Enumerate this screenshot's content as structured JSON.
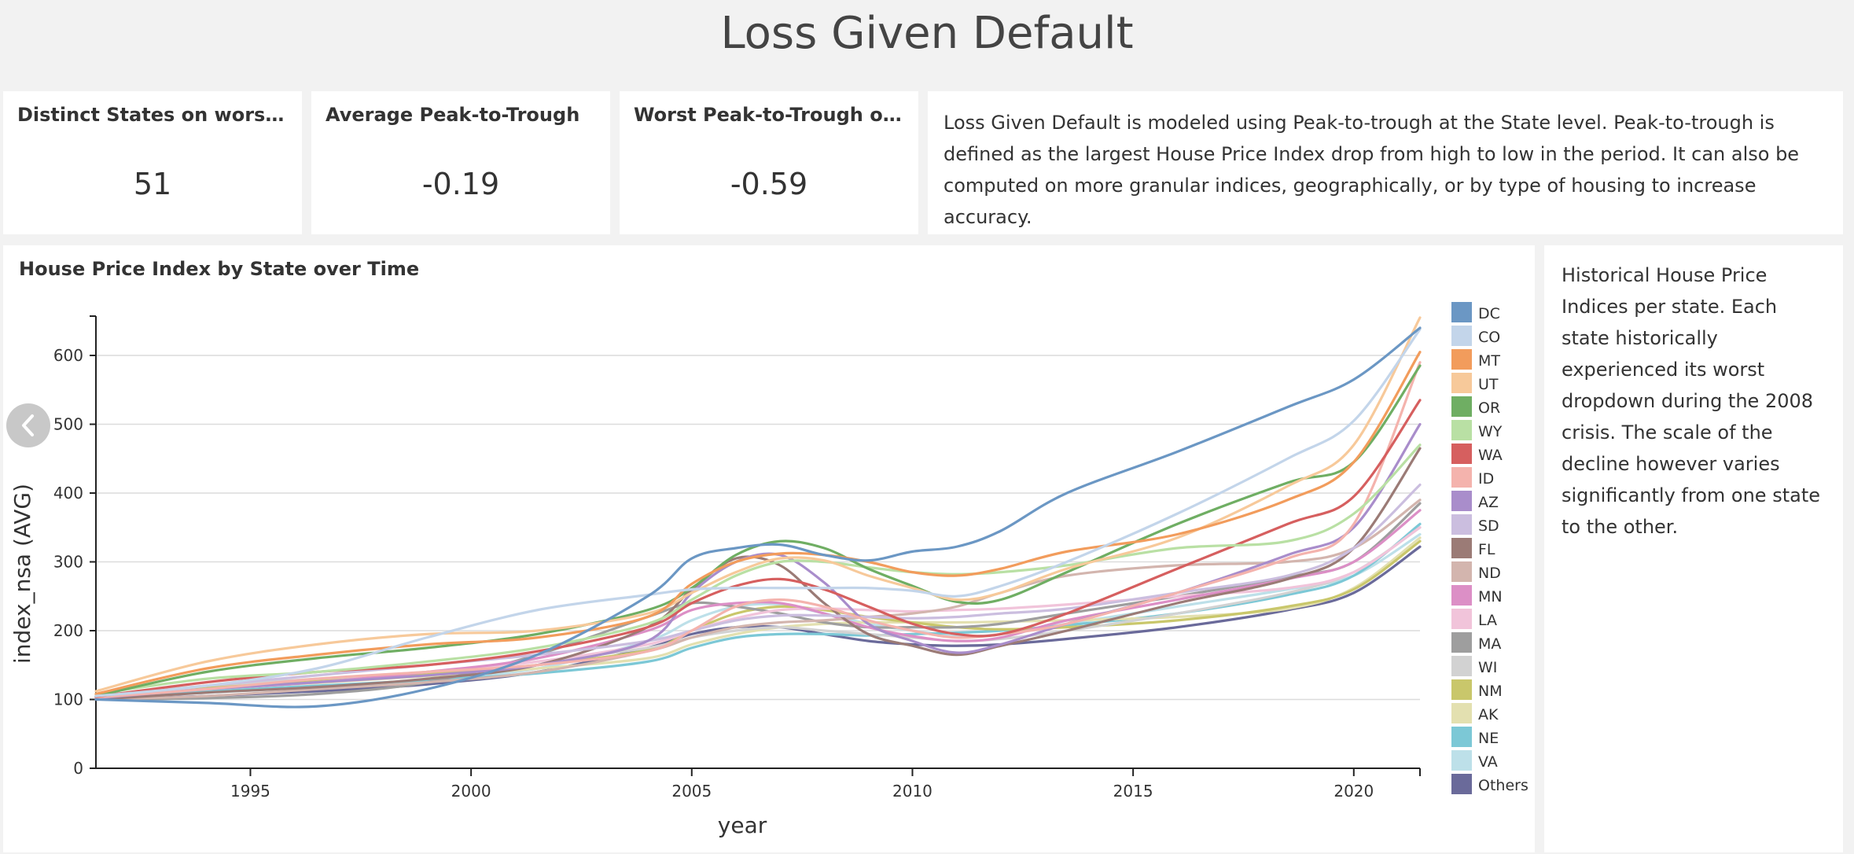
{
  "page": {
    "title": "Loss Given Default"
  },
  "kpis": [
    {
      "title": "Distinct States on worst_pe…",
      "value": "51"
    },
    {
      "title": "Average Peak-to-Trough",
      "value": "-0.19"
    },
    {
      "title": "Worst Peak-to-Trough on wo…",
      "value": "-0.59"
    }
  ],
  "description": "Loss Given Default is modeled using Peak-to-trough at the State level. Peak-to-trough is defined as the largest House Price Index drop from high to low in the period. It can also be computed on more granular indices, geographically, or by type of housing to increase accuracy.",
  "side_note": "Historical House Price Indices per state. Each state historically experienced its worst dropdown during the 2008 crisis. The scale of the decline however varies significantly from one state to the other.",
  "nav": {
    "back_icon": "chevron-left-icon"
  },
  "chart_data": {
    "type": "line",
    "title": "House Price Index by State over Time",
    "xlabel": "year",
    "ylabel": "index_nsa (AVG)",
    "xlim": [
      1991.5,
      2021.5
    ],
    "ylim": [
      0,
      650
    ],
    "xticks": [
      1995,
      2000,
      2005,
      2010,
      2015,
      2020
    ],
    "yticks": [
      0,
      100,
      200,
      300,
      400,
      500,
      600
    ],
    "grid": true,
    "legend_position": "right",
    "x": [
      1991.5,
      1994,
      1996.5,
      1999,
      2001.5,
      2004,
      2005,
      2006,
      2007,
      2008,
      2009,
      2010,
      2011,
      2012,
      2013.5,
      2016,
      2018.5,
      2020,
      2021.5
    ],
    "series": [
      {
        "name": "DC",
        "color": "#6b97c4",
        "values": [
          100,
          95,
          90,
          115,
          165,
          250,
          305,
          320,
          325,
          310,
          302,
          315,
          322,
          345,
          400,
          460,
          525,
          565,
          640
        ]
      },
      {
        "name": "CO",
        "color": "#c3d5ea",
        "values": [
          105,
          120,
          145,
          190,
          230,
          252,
          260,
          262,
          262,
          262,
          262,
          258,
          250,
          265,
          300,
          370,
          450,
          505,
          638
        ]
      },
      {
        "name": "MT",
        "color": "#f29c5c",
        "values": [
          108,
          145,
          165,
          180,
          190,
          220,
          268,
          300,
          312,
          310,
          300,
          285,
          280,
          290,
          315,
          340,
          390,
          445,
          605
        ]
      },
      {
        "name": "UT",
        "color": "#f7c99a",
        "values": [
          112,
          155,
          180,
          195,
          200,
          225,
          255,
          285,
          305,
          302,
          280,
          262,
          245,
          255,
          290,
          335,
          410,
          470,
          655
        ]
      },
      {
        "name": "OR",
        "color": "#6fae63",
        "values": [
          105,
          140,
          160,
          175,
          195,
          230,
          262,
          310,
          330,
          320,
          290,
          265,
          242,
          245,
          285,
          355,
          415,
          445,
          585
        ]
      },
      {
        "name": "WY",
        "color": "#b9e0a4",
        "values": [
          108,
          130,
          140,
          155,
          175,
          210,
          245,
          280,
          300,
          300,
          292,
          285,
          282,
          285,
          295,
          320,
          330,
          370,
          470
        ]
      },
      {
        "name": "WA",
        "color": "#d65f5f",
        "values": [
          104,
          125,
          140,
          150,
          170,
          205,
          240,
          265,
          275,
          260,
          235,
          210,
          195,
          195,
          225,
          290,
          355,
          395,
          535
        ]
      },
      {
        "name": "ID",
        "color": "#f4b3ad",
        "values": [
          103,
          115,
          130,
          140,
          150,
          170,
          200,
          235,
          245,
          235,
          215,
          200,
          190,
          195,
          210,
          255,
          305,
          355,
          590
        ]
      },
      {
        "name": "AZ",
        "color": "#a98dcb",
        "values": [
          102,
          115,
          125,
          135,
          150,
          185,
          255,
          300,
          310,
          270,
          210,
          185,
          168,
          180,
          210,
          255,
          310,
          350,
          500
        ]
      },
      {
        "name": "SD",
        "color": "#cbbedf",
        "values": [
          102,
          120,
          135,
          150,
          165,
          185,
          200,
          215,
          222,
          222,
          220,
          218,
          220,
          225,
          232,
          255,
          280,
          320,
          412
        ]
      },
      {
        "name": "FL",
        "color": "#9b7b76",
        "values": [
          100,
          110,
          118,
          130,
          150,
          205,
          260,
          305,
          295,
          240,
          195,
          178,
          165,
          178,
          200,
          240,
          275,
          320,
          465
        ]
      },
      {
        "name": "ND",
        "color": "#d3b5ae",
        "values": [
          100,
          105,
          115,
          125,
          140,
          170,
          190,
          205,
          212,
          215,
          220,
          225,
          235,
          255,
          280,
          295,
          300,
          320,
          390
        ]
      },
      {
        "name": "MN",
        "color": "#dc8fc6",
        "values": [
          103,
          115,
          125,
          140,
          160,
          200,
          230,
          240,
          240,
          225,
          205,
          192,
          185,
          190,
          215,
          245,
          275,
          300,
          375
        ]
      },
      {
        "name": "LA",
        "color": "#f1c4da",
        "values": [
          105,
          115,
          125,
          140,
          155,
          180,
          200,
          218,
          230,
          232,
          230,
          228,
          230,
          232,
          238,
          250,
          262,
          285,
          350
        ]
      },
      {
        "name": "MA",
        "color": "#9e9e9e",
        "values": [
          100,
          102,
          108,
          125,
          165,
          220,
          240,
          235,
          225,
          212,
          205,
          205,
          205,
          210,
          225,
          250,
          278,
          300,
          385
        ]
      },
      {
        "name": "WI",
        "color": "#d2d2d2",
        "values": [
          104,
          120,
          130,
          140,
          155,
          175,
          190,
          200,
          205,
          200,
          195,
          190,
          185,
          188,
          200,
          225,
          255,
          285,
          350
        ]
      },
      {
        "name": "NM",
        "color": "#c9c76b",
        "values": [
          104,
          118,
          128,
          138,
          150,
          172,
          200,
          225,
          235,
          230,
          220,
          212,
          205,
          202,
          205,
          215,
          235,
          260,
          330
        ]
      },
      {
        "name": "AK",
        "color": "#e3e0b0",
        "values": [
          106,
          116,
          124,
          134,
          145,
          160,
          180,
          195,
          205,
          210,
          212,
          212,
          212,
          213,
          215,
          220,
          232,
          262,
          335
        ]
      },
      {
        "name": "NE",
        "color": "#7cc8d6",
        "values": [
          104,
          112,
          120,
          128,
          138,
          155,
          175,
          190,
          195,
          195,
          193,
          195,
          197,
          200,
          208,
          225,
          252,
          280,
          355
        ]
      },
      {
        "name": "VA",
        "color": "#bde0e9",
        "values": [
          102,
          110,
          118,
          128,
          145,
          185,
          215,
          235,
          238,
          225,
          210,
          200,
          192,
          195,
          210,
          235,
          260,
          280,
          340
        ]
      },
      {
        "name": "Others",
        "color": "#6a6a9a",
        "values": [
          100,
          105,
          112,
          122,
          140,
          175,
          195,
          205,
          205,
          195,
          185,
          180,
          178,
          180,
          188,
          205,
          230,
          255,
          322
        ]
      }
    ]
  }
}
